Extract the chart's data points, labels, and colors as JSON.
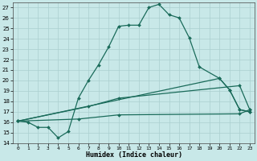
{
  "title": "",
  "xlabel": "Humidex (Indice chaleur)",
  "background_color": "#c8e8e8",
  "grid_color": "#aacfcf",
  "line_color": "#1a6b5a",
  "xlim": [
    -0.5,
    23.5
  ],
  "ylim": [
    14,
    27.5
  ],
  "xticks": [
    0,
    1,
    2,
    3,
    4,
    5,
    6,
    7,
    8,
    9,
    10,
    11,
    12,
    13,
    14,
    15,
    16,
    17,
    18,
    19,
    20,
    21,
    22,
    23
  ],
  "yticks": [
    14,
    15,
    16,
    17,
    18,
    19,
    20,
    21,
    22,
    23,
    24,
    25,
    26,
    27
  ],
  "line1_x": [
    0,
    1,
    2,
    3,
    4,
    5,
    6,
    7,
    8,
    9,
    10,
    11,
    12,
    13,
    14,
    15,
    16,
    17,
    18,
    20,
    21,
    22,
    23
  ],
  "line1_y": [
    16.1,
    16.0,
    15.5,
    15.5,
    14.5,
    15.1,
    18.3,
    20.0,
    21.5,
    23.2,
    25.2,
    25.3,
    25.3,
    27.0,
    27.3,
    26.3,
    26.0,
    24.1,
    21.3,
    20.2,
    19.1,
    17.2,
    17.0
  ],
  "line2_x": [
    0,
    20,
    21,
    22,
    23
  ],
  "line2_y": [
    16.1,
    20.2,
    19.1,
    17.2,
    17.0
  ],
  "line3_x": [
    0,
    7,
    10,
    22,
    23
  ],
  "line3_y": [
    16.1,
    17.5,
    18.3,
    19.5,
    17.2
  ],
  "line4_x": [
    0,
    6,
    10,
    22,
    23
  ],
  "line4_y": [
    16.1,
    16.3,
    16.7,
    16.8,
    17.2
  ]
}
